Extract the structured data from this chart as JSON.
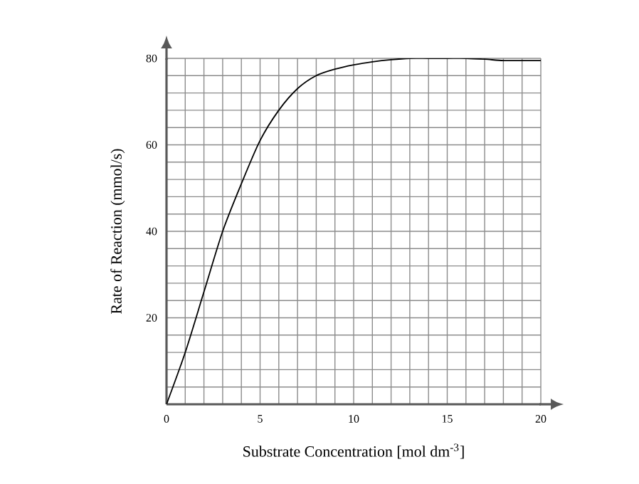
{
  "chart_data": {
    "type": "line",
    "xlabel": "Substrate Concentration [mol dm$^{-3}$]",
    "ylabel": "Rate of Reaction (mmol/s)",
    "x": [
      0,
      1,
      2,
      3,
      4,
      5,
      6,
      7,
      8,
      9,
      10,
      11,
      12,
      13,
      14,
      15,
      16,
      17,
      18,
      19,
      20
    ],
    "series": [
      {
        "color": "#000000",
        "values": [
          0,
          12,
          26,
          40,
          51,
          61,
          68,
          73,
          76,
          77.5,
          78.5,
          79.2,
          79.7,
          80,
          80,
          80,
          80,
          79.8,
          79.5,
          79.5,
          79.5
        ]
      }
    ],
    "xlim": [
      0,
      20
    ],
    "ylim": [
      0,
      80
    ],
    "xticks": [
      0,
      {
        "value": 1,
        "label": null
      },
      {
        "value": 2,
        "label": null
      },
      {
        "value": 3,
        "label": null
      },
      {
        "value": 4,
        "label": null
      },
      5,
      {
        "value": 6,
        "label": null
      },
      {
        "value": 7,
        "label": null
      },
      {
        "value": 8,
        "label": null
      },
      {
        "value": 9,
        "label": null
      },
      10,
      {
        "value": 11,
        "label": null
      },
      {
        "value": 12,
        "label": null
      },
      {
        "value": 13,
        "label": null
      },
      {
        "value": 14,
        "label": null
      },
      15,
      {
        "value": 16,
        "label": null
      },
      {
        "value": 17,
        "label": null
      },
      {
        "value": 18,
        "label": null
      },
      {
        "value": 19,
        "label": null
      },
      20
    ],
    "yticks": [
      {
        "value": 0,
        "label": null
      },
      {
        "value": 4,
        "label": null
      },
      {
        "value": 8,
        "label": null
      },
      {
        "value": 12,
        "label": null
      },
      {
        "value": 16,
        "label": null
      },
      20,
      {
        "value": 24,
        "label": null
      },
      {
        "value": 28,
        "label": null
      },
      {
        "value": 32,
        "label": null
      },
      {
        "value": 36,
        "label": null
      },
      40,
      {
        "value": 44,
        "label": null
      },
      {
        "value": 48,
        "label": null
      },
      {
        "value": 52,
        "label": null
      },
      {
        "value": 56,
        "label": null
      },
      60,
      {
        "value": 64,
        "label": null
      },
      {
        "value": 68,
        "label": null
      },
      {
        "value": 72,
        "label": null
      },
      {
        "value": 76,
        "label": null
      },
      80
    ],
    "grid": true,
    "marker": "none",
    "line_style": "solid"
  }
}
